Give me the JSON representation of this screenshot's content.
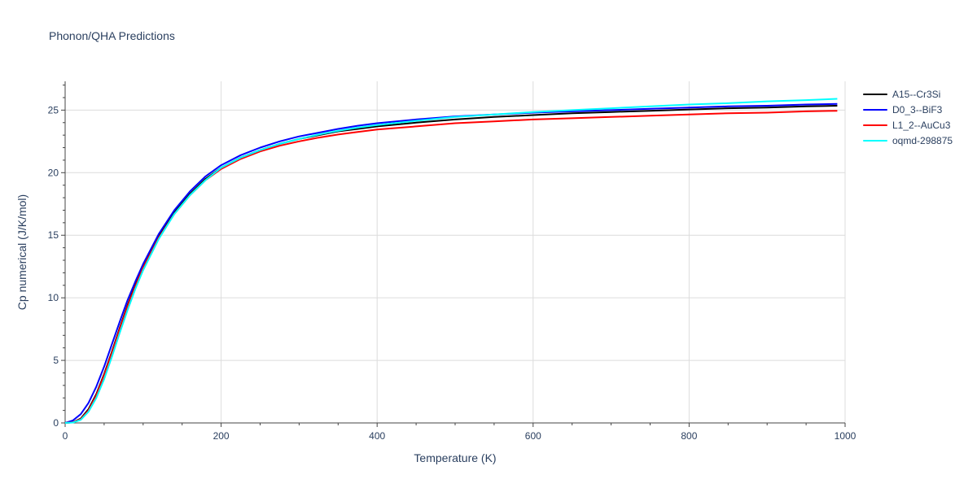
{
  "chart_data": {
    "type": "line",
    "title": "Phonon/QHA Predictions",
    "xlabel": "Temperature (K)",
    "ylabel": "Cp numerical (J/K/mol)",
    "xlim": [
      0,
      1000
    ],
    "ylim": [
      0,
      27.3
    ],
    "x_ticks": [
      0,
      200,
      400,
      600,
      800,
      1000
    ],
    "y_ticks": [
      0,
      5,
      10,
      15,
      20,
      25
    ],
    "x_tick_labels": [
      "0",
      "200",
      "400",
      "600",
      "800",
      "1000"
    ],
    "y_tick_labels": [
      "0",
      "5",
      "10",
      "15",
      "20",
      "25"
    ],
    "grid": true,
    "legend_position": "top-right",
    "series": [
      {
        "name": "A15--Cr3Si",
        "color": "#000000",
        "x": [
          0,
          10,
          20,
          30,
          40,
          50,
          60,
          70,
          80,
          90,
          100,
          120,
          140,
          160,
          180,
          200,
          225,
          250,
          275,
          300,
          325,
          350,
          375,
          400,
          450,
          500,
          550,
          600,
          650,
          700,
          750,
          800,
          850,
          900,
          950,
          990
        ],
        "y": [
          0,
          0.05,
          0.35,
          1.1,
          2.3,
          3.9,
          5.7,
          7.6,
          9.4,
          11.0,
          12.5,
          14.9,
          16.8,
          18.3,
          19.5,
          20.4,
          21.2,
          21.8,
          22.3,
          22.7,
          23.0,
          23.3,
          23.5,
          23.7,
          24.0,
          24.25,
          24.45,
          24.6,
          24.75,
          24.85,
          24.95,
          25.05,
          25.15,
          25.2,
          25.3,
          25.35
        ]
      },
      {
        "name": "D0_3--BiF3",
        "color": "#0000ff",
        "x": [
          0,
          10,
          20,
          30,
          40,
          50,
          60,
          70,
          80,
          90,
          100,
          120,
          140,
          160,
          180,
          200,
          225,
          250,
          275,
          300,
          325,
          350,
          375,
          400,
          450,
          500,
          550,
          600,
          650,
          700,
          750,
          800,
          850,
          900,
          950,
          990
        ],
        "y": [
          0,
          0.2,
          0.7,
          1.6,
          2.9,
          4.5,
          6.3,
          8.1,
          9.8,
          11.3,
          12.7,
          15.1,
          17.0,
          18.5,
          19.7,
          20.6,
          21.4,
          22.0,
          22.5,
          22.9,
          23.2,
          23.5,
          23.75,
          23.95,
          24.25,
          24.5,
          24.65,
          24.8,
          24.9,
          25.0,
          25.1,
          25.2,
          25.3,
          25.35,
          25.45,
          25.5
        ]
      },
      {
        "name": "L1_2--AuCu3",
        "color": "#ff0000",
        "x": [
          0,
          10,
          20,
          30,
          40,
          50,
          60,
          70,
          80,
          90,
          100,
          120,
          140,
          160,
          180,
          200,
          225,
          250,
          275,
          300,
          325,
          350,
          375,
          400,
          450,
          500,
          550,
          600,
          650,
          700,
          750,
          800,
          850,
          900,
          950,
          990
        ],
        "y": [
          0,
          0.05,
          0.3,
          1.0,
          2.2,
          3.8,
          5.6,
          7.5,
          9.3,
          10.9,
          12.4,
          14.8,
          16.7,
          18.2,
          19.4,
          20.3,
          21.1,
          21.7,
          22.15,
          22.5,
          22.8,
          23.05,
          23.25,
          23.45,
          23.7,
          23.95,
          24.1,
          24.25,
          24.35,
          24.45,
          24.55,
          24.65,
          24.75,
          24.8,
          24.9,
          24.95
        ]
      },
      {
        "name": "oqmd-298875",
        "color": "#00ffff",
        "x": [
          0,
          10,
          20,
          30,
          40,
          50,
          60,
          70,
          80,
          90,
          100,
          120,
          140,
          160,
          180,
          200,
          225,
          250,
          275,
          300,
          325,
          350,
          375,
          400,
          450,
          500,
          550,
          600,
          650,
          700,
          750,
          800,
          850,
          900,
          950,
          990
        ],
        "y": [
          0,
          0.03,
          0.25,
          0.9,
          2.0,
          3.5,
          5.3,
          7.2,
          9.0,
          10.7,
          12.2,
          14.7,
          16.7,
          18.2,
          19.4,
          20.4,
          21.2,
          21.8,
          22.3,
          22.7,
          23.05,
          23.35,
          23.6,
          23.8,
          24.15,
          24.45,
          24.65,
          24.85,
          25.0,
          25.15,
          25.3,
          25.45,
          25.55,
          25.7,
          25.8,
          25.9
        ]
      }
    ]
  }
}
